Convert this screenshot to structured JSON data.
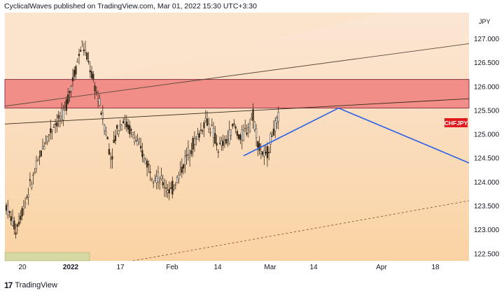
{
  "header": {
    "text": "CyclicalWaves published on TradingView.com, Mar 01, 2022 15:30 UTC+3:30"
  },
  "footer": {
    "logo": "17",
    "brand": "TradingView"
  },
  "symbol_badge": "CHFJPY",
  "colors": {
    "background_top": "#fbe6d5",
    "background_bottom": "#fad3a3",
    "resistance_zone": "#f08080",
    "projection_line": "#2b5ee6",
    "candles": "#3a2a1a"
  },
  "chart_data": {
    "type": "candlestick",
    "currency": "JPY",
    "y_ticks": [
      "127.000",
      "126.500",
      "126.000",
      "125.500",
      "125.000",
      "124.500",
      "124.000",
      "123.500",
      "123.000",
      "122.500"
    ],
    "y_range": [
      122.35,
      127.55
    ],
    "x_ticks": [
      {
        "label": "20",
        "bold": false
      },
      {
        "label": "2022",
        "bold": true
      },
      {
        "label": "17",
        "bold": false
      },
      {
        "label": "Feb",
        "bold": false
      },
      {
        "label": "14",
        "bold": false
      },
      {
        "label": "Mar",
        "bold": false
      },
      {
        "label": "14",
        "bold": false
      },
      {
        "label": "Apr",
        "bold": false
      },
      {
        "label": "18",
        "bold": false
      }
    ],
    "resistance_zone": [
      125.55,
      126.15
    ],
    "last_price_label": "CHFJPY",
    "price_path": [
      [
        0,
        123.5
      ],
      [
        3,
        123.0
      ],
      [
        6,
        123.6
      ],
      [
        9,
        124.2
      ],
      [
        12,
        124.8
      ],
      [
        15,
        125.2
      ],
      [
        18,
        125.4
      ],
      [
        20,
        125.9
      ],
      [
        22,
        126.4
      ],
      [
        24,
        126.9
      ],
      [
        26,
        126.5
      ],
      [
        28,
        126.0
      ],
      [
        30,
        125.5
      ],
      [
        32,
        124.9
      ],
      [
        33,
        124.5
      ],
      [
        35,
        125.1
      ],
      [
        37,
        125.3
      ],
      [
        40,
        125.0
      ],
      [
        43,
        124.6
      ],
      [
        46,
        124.2
      ],
      [
        49,
        124.0
      ],
      [
        52,
        123.8
      ],
      [
        55,
        124.2
      ],
      [
        58,
        124.7
      ],
      [
        61,
        125.0
      ],
      [
        63,
        125.3
      ],
      [
        65,
        125.1
      ],
      [
        67,
        124.7
      ],
      [
        70,
        124.9
      ],
      [
        72,
        125.2
      ],
      [
        74,
        124.9
      ],
      [
        76,
        125.1
      ],
      [
        78,
        125.4
      ],
      [
        80,
        124.7
      ],
      [
        82,
        124.5
      ],
      [
        84,
        125.0
      ],
      [
        86,
        125.3
      ]
    ],
    "annotations": [
      {
        "type": "rising_wedge_upper",
        "from": [
          -5,
          125.55
        ],
        "to": [
          180,
          127.2
        ]
      },
      {
        "type": "trend_line",
        "from": [
          -5,
          125.2
        ],
        "to": [
          175,
          125.85
        ]
      },
      {
        "type": "dashed_support",
        "from": [
          40,
          122.35
        ],
        "to": [
          175,
          123.95
        ]
      },
      {
        "type": "projection_up",
        "from": [
          75,
          124.55
        ],
        "to": [
          105,
          125.55
        ]
      },
      {
        "type": "projection_down",
        "from": [
          105,
          125.55
        ],
        "to": [
          175,
          123.6
        ]
      }
    ]
  }
}
